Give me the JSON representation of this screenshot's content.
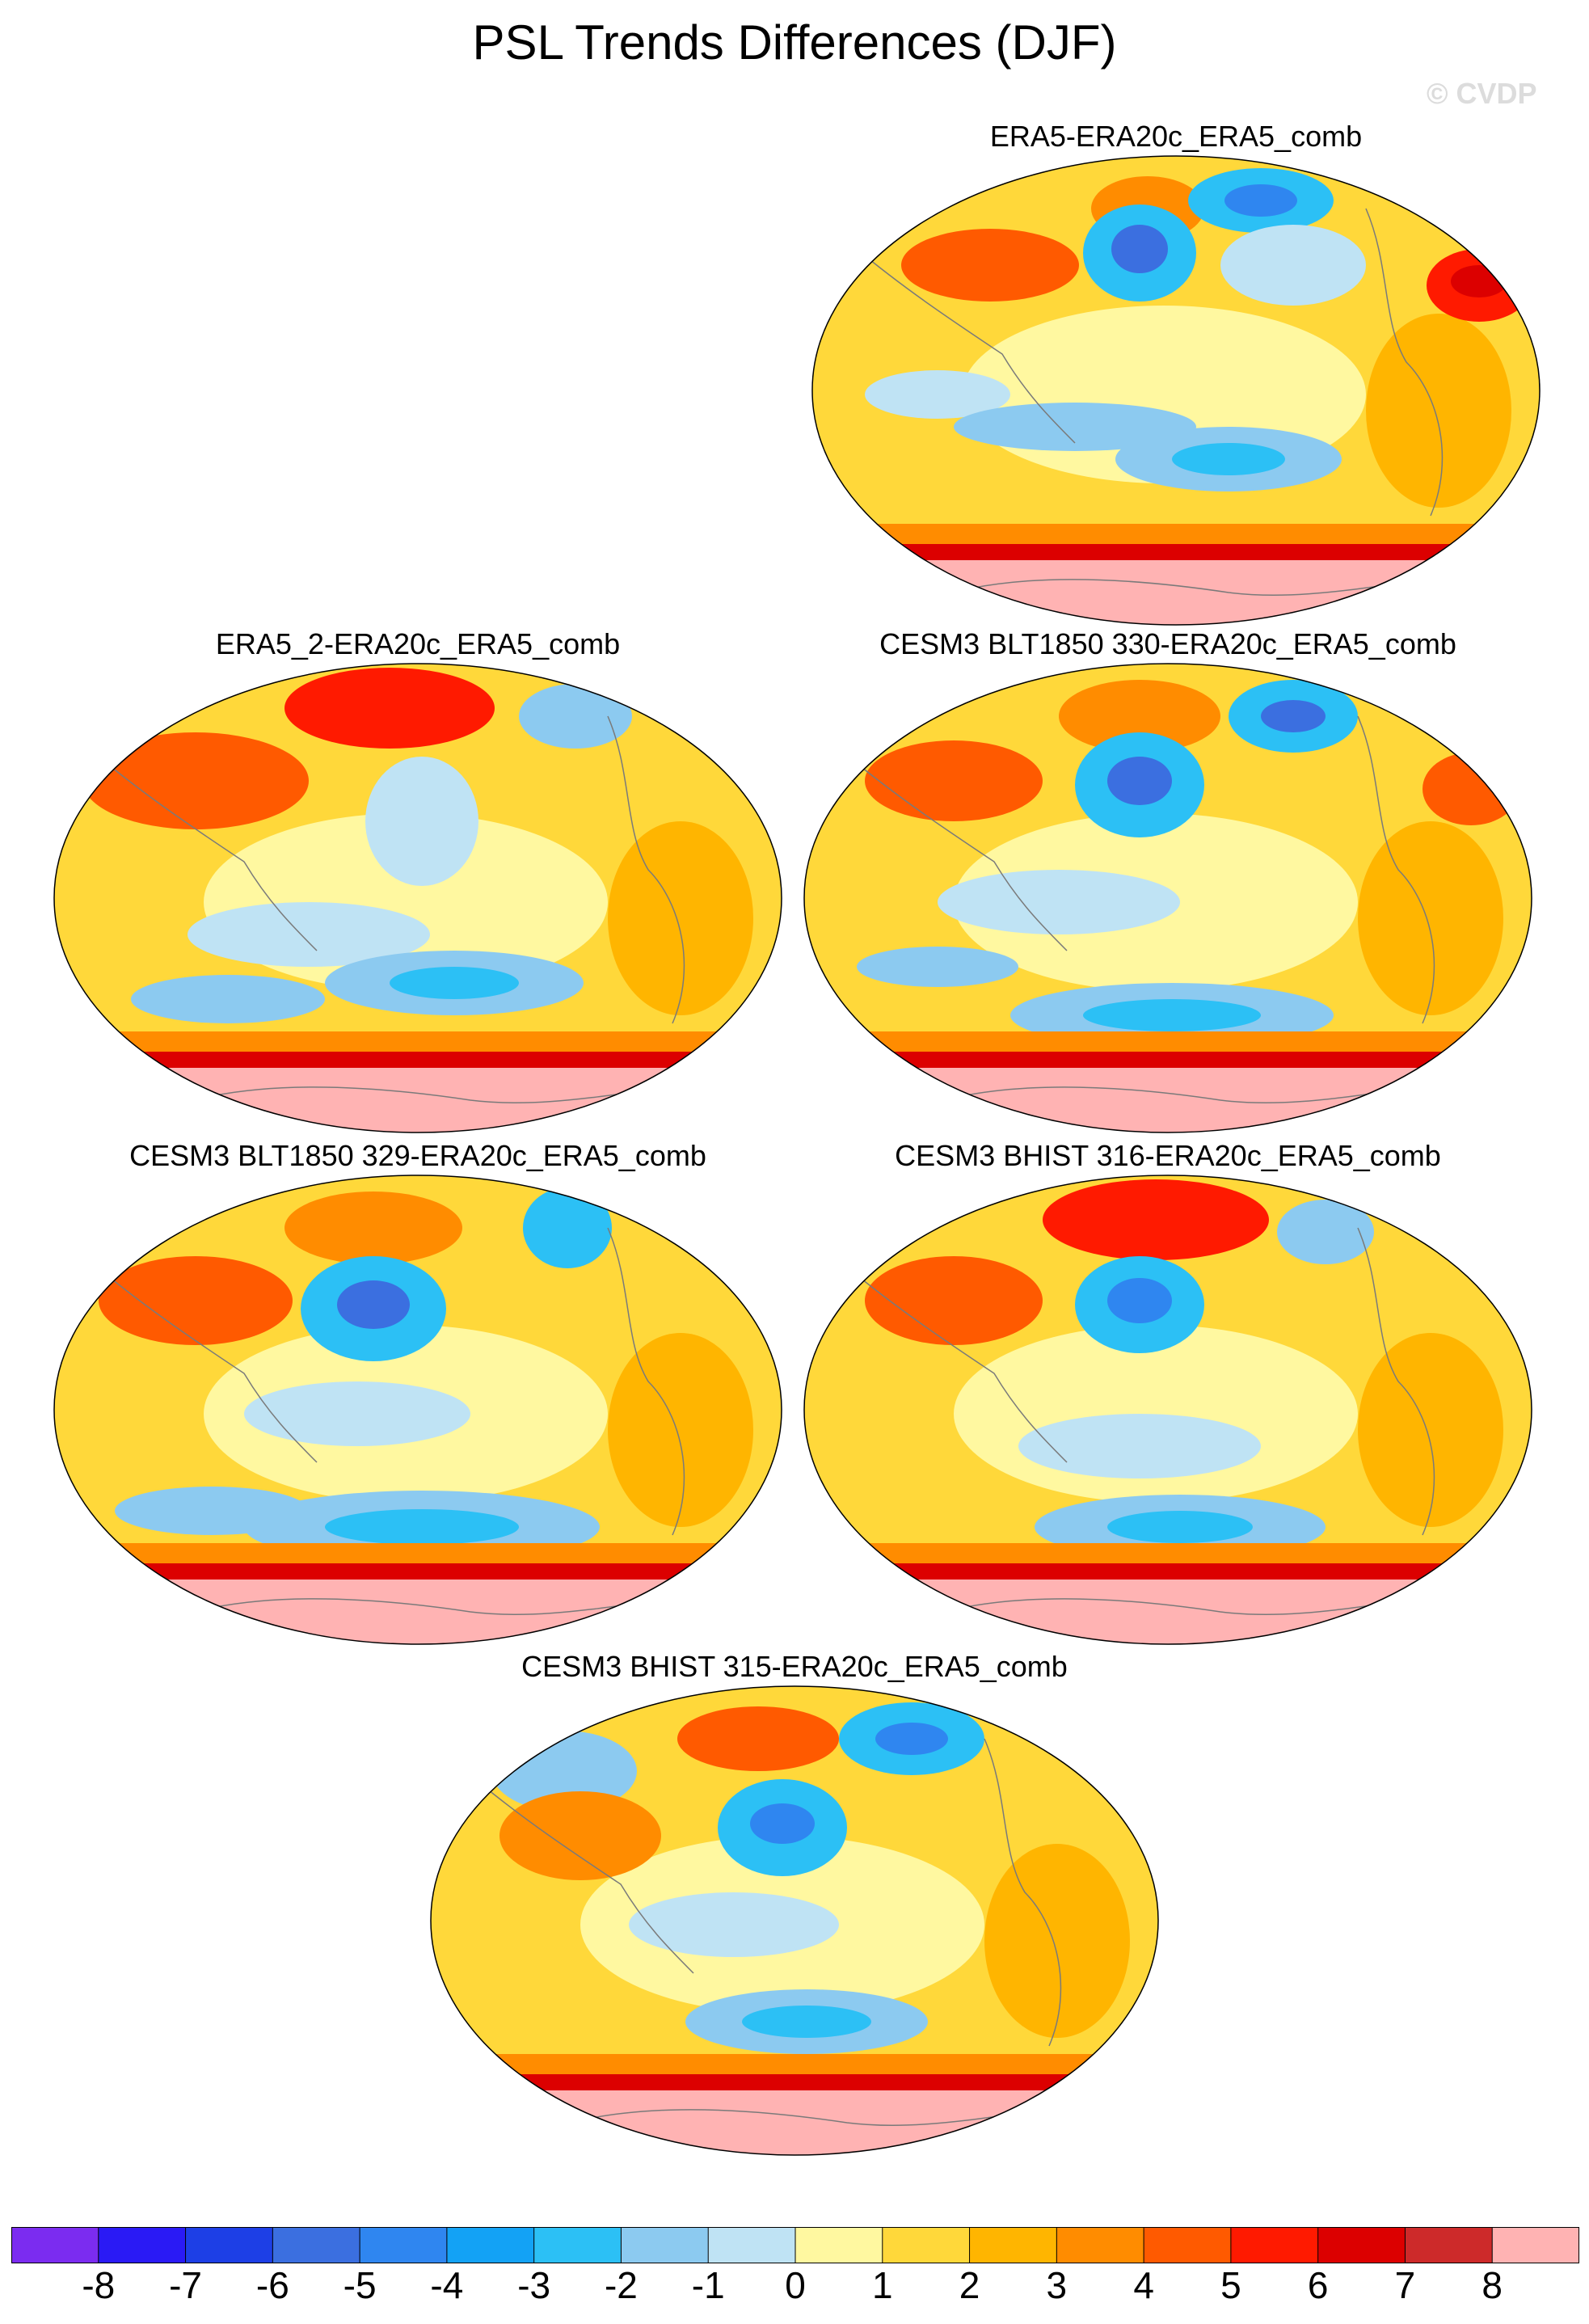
{
  "title": "PSL Trends Differences (DJF)",
  "watermark": "© CVDP",
  "panels": [
    {
      "label": "ERA5-ERA20c_ERA5_comb",
      "style": 0
    },
    {
      "label": "ERA5_2-ERA20c_ERA5_comb",
      "style": 1
    },
    {
      "label": "CESM3 BLT1850 330-ERA20c_ERA5_comb",
      "style": 2
    },
    {
      "label": "CESM3 BLT1850 329-ERA20c_ERA5_comb",
      "style": 3
    },
    {
      "label": "CESM3 BHIST 316-ERA20c_ERA5_comb",
      "style": 4
    },
    {
      "label": "CESM3 BHIST 315-ERA20c_ERA5_comb",
      "style": 5
    }
  ],
  "colorbar": {
    "colors": [
      "#7b2cf0",
      "#2a1af5",
      "#1d3fe6",
      "#3b6fe0",
      "#2f86f0",
      "#13a2f5",
      "#2cc0f5",
      "#8ccaf0",
      "#bfe3f4",
      "#fff8a0",
      "#ffd83a",
      "#ffb500",
      "#ff8c00",
      "#ff5a00",
      "#ff1a00",
      "#dc0000",
      "#cd2a2a",
      "#ffb3b3"
    ],
    "ticks": [
      "-8",
      "-7",
      "-6",
      "-5",
      "-4",
      "-3",
      "-2",
      "-1",
      "0",
      "1",
      "2",
      "3",
      "4",
      "5",
      "6",
      "7",
      "8"
    ]
  }
}
